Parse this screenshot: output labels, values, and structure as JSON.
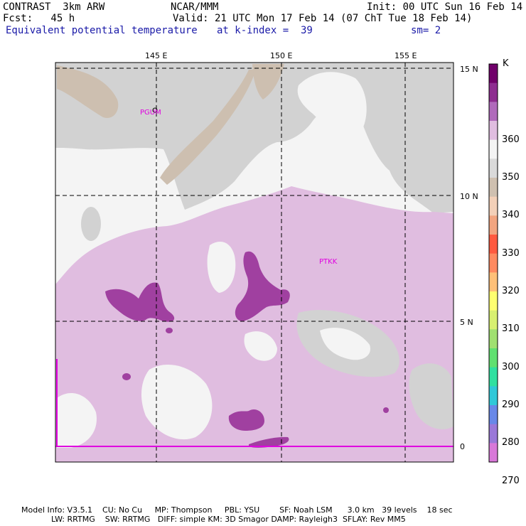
{
  "header": {
    "left_line1": "CONTRAST  3km ARW",
    "left_line2": "Fcst:   45 h",
    "left_line3": "Equivalent potential temperature",
    "center_line1": "NCAR/MMM",
    "center_line2": "Valid: 21 UTC Mon 17 Feb 14 (07 ChT Tue 18 Feb 14)",
    "center_line3": "at k-index =  39",
    "right_line1": "Init: 00 UTC Sun 16 Feb 14",
    "right_line3": "sm= 2"
  },
  "axes": {
    "lon_labels": [
      "145 E",
      "150 E",
      "155 E"
    ],
    "lat_labels": [
      "15 N",
      "10 N",
      "5 N",
      "0"
    ]
  },
  "stations": [
    {
      "id": "PGUM"
    },
    {
      "id": "PTKK"
    }
  ],
  "colorbar": {
    "unit": "K",
    "labels": [
      "360",
      "350",
      "340",
      "330",
      "320",
      "310",
      "300",
      "290",
      "280",
      "270"
    ],
    "colors": [
      "#70006a",
      "#8e2d90",
      "#b06abb",
      "#e0bde0",
      "#f4f4f4",
      "#dadada",
      "#cfc0b0",
      "#f3d0b8",
      "#f2a580",
      "#ff5a40",
      "#ff8a60",
      "#ffc078",
      "#ffff70",
      "#d8f070",
      "#a0e070",
      "#60e070",
      "#30e0a0",
      "#30c8d8",
      "#6888e8",
      "#9a78d8",
      "#d878d8"
    ]
  },
  "footer": {
    "line1": "Model Info: V3.5.1    CU: No Cu     MP: Thompson     PBL: YSU        SF: Noah LSM      3.0 km   39 levels    18 sec",
    "line2": "            LW: RRTMG    SW: RRTMG   DIFF: simple KM: 3D Smagor DAMP: Rayleigh3  SFLAY: Rev MM5"
  }
}
